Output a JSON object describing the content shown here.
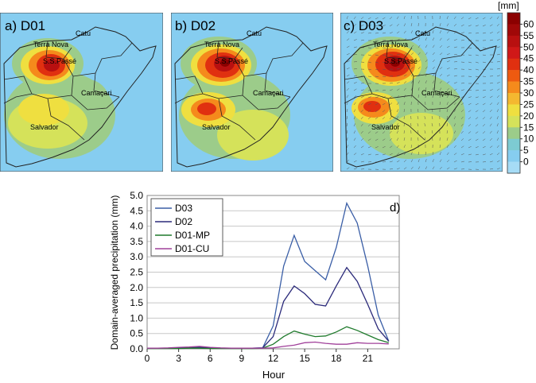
{
  "maps": {
    "panels": [
      {
        "label": "a) D01",
        "places": [
          "Catu",
          "Terra Nova",
          "S.S.Passé",
          "Camaçari",
          "Salvador"
        ]
      },
      {
        "label": "b) D02",
        "places": [
          "Catu",
          "Terra Nova",
          "S.S.Passé",
          "Camaçari",
          "Salvador"
        ]
      },
      {
        "label": "c) D03",
        "places": [
          "Catu",
          "Terra Nova",
          "S.S.Passé",
          "Camaçari",
          "Salvador"
        ]
      }
    ],
    "colorbar": {
      "unit": "[mm]",
      "levels": [
        "60",
        "55",
        "50",
        "45",
        "40",
        "35",
        "30",
        "25",
        "20",
        "15",
        "10",
        "5",
        "0"
      ],
      "colors": [
        "#8b0000",
        "#a00808",
        "#b81010",
        "#d01818",
        "#e03010",
        "#ee5a10",
        "#f58a1c",
        "#f4b830",
        "#efdf40",
        "#d5e25a",
        "#9ccc8a",
        "#7dcbd2",
        "#86cdf0",
        "#a6dcf6"
      ]
    },
    "colors": {
      "background": "#86cdf0",
      "land": "#89cdea"
    }
  },
  "chart_data": {
    "type": "line",
    "panel_label": "d)",
    "xlabel": "Hour",
    "ylabel": "Domain-averaged precipitation (mm)",
    "xlim": [
      0,
      24
    ],
    "ylim": [
      0,
      5.0
    ],
    "xticks": [
      "0",
      "3",
      "6",
      "9",
      "12",
      "15",
      "18",
      "21"
    ],
    "yticks": [
      "0.0",
      "0.5",
      "1.0",
      "1.5",
      "2.0",
      "2.5",
      "3.0",
      "3.5",
      "4.0",
      "4.5",
      "5.0"
    ],
    "grid": "horizontal",
    "legend": "top-left",
    "x": [
      0,
      1,
      2,
      3,
      4,
      5,
      6,
      7,
      8,
      9,
      10,
      11,
      12,
      13,
      14,
      15,
      16,
      17,
      18,
      19,
      20,
      21,
      22,
      23
    ],
    "series": [
      {
        "name": "D03",
        "color": "#3a5ea6",
        "values": [
          0.02,
          0.02,
          0.02,
          0.03,
          0.04,
          0.05,
          0.03,
          0.02,
          0.02,
          0.02,
          0.02,
          0.03,
          0.75,
          2.7,
          3.7,
          2.85,
          2.55,
          2.25,
          3.3,
          4.75,
          4.1,
          2.7,
          1.1,
          0.25
        ]
      },
      {
        "name": "D02",
        "color": "#2b2a7a",
        "values": [
          0.02,
          0.02,
          0.02,
          0.03,
          0.04,
          0.05,
          0.03,
          0.02,
          0.02,
          0.02,
          0.02,
          0.03,
          0.4,
          1.55,
          2.05,
          1.8,
          1.45,
          1.4,
          2.05,
          2.65,
          2.2,
          1.45,
          0.65,
          0.25
        ]
      },
      {
        "name": "D01-MP",
        "color": "#1f7a2c",
        "values": [
          0.01,
          0.01,
          0.01,
          0.01,
          0.02,
          0.02,
          0.01,
          0.01,
          0.01,
          0.01,
          0.01,
          0.02,
          0.15,
          0.4,
          0.58,
          0.48,
          0.4,
          0.42,
          0.55,
          0.72,
          0.6,
          0.45,
          0.3,
          0.2
        ]
      },
      {
        "name": "D01-CU",
        "color": "#a0409a",
        "values": [
          0.02,
          0.02,
          0.03,
          0.05,
          0.06,
          0.08,
          0.05,
          0.03,
          0.02,
          0.02,
          0.02,
          0.02,
          0.03,
          0.08,
          0.12,
          0.2,
          0.22,
          0.18,
          0.15,
          0.15,
          0.2,
          0.18,
          0.18,
          0.16
        ]
      }
    ]
  }
}
